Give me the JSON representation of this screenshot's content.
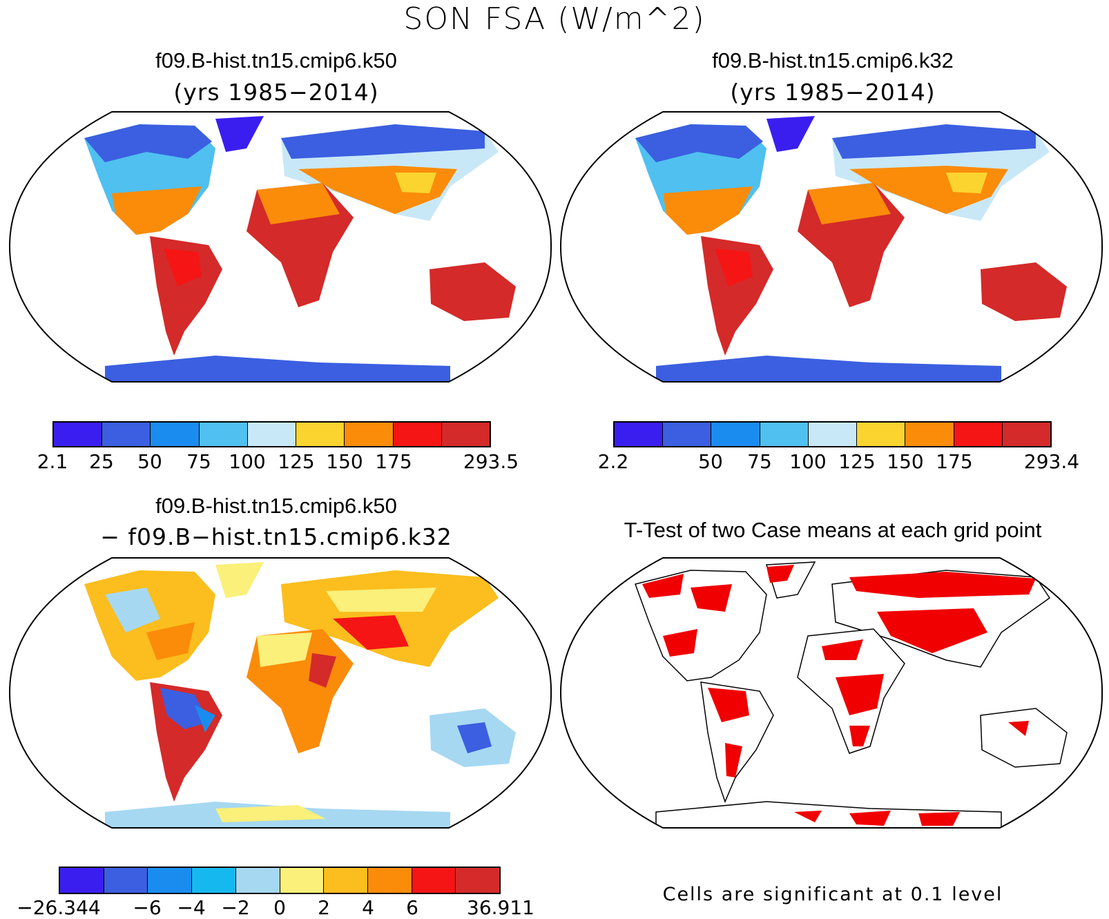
{
  "figure": {
    "title": "SON FSA (W/m^2)"
  },
  "panels": {
    "top_left": {
      "title": "f09.B-hist.tn15.cmip6.k50",
      "subtitle": "(yrs 1985−2014)",
      "colorbar": {
        "colors": [
          "#3a1ef0",
          "#3b5fe0",
          "#1a8cf0",
          "#4fc0f0",
          "#c8e8f8",
          "#fbd430",
          "#fa8c0a",
          "#f51515",
          "#d42a2a"
        ],
        "labels": [
          "2.1",
          "25",
          "50",
          "75",
          "100",
          "125",
          "150",
          "175",
          "293.5"
        ]
      }
    },
    "top_right": {
      "title": "f09.B-hist.tn15.cmip6.k32",
      "subtitle": "(yrs 1985−2014)",
      "colorbar": {
        "colors": [
          "#3a1ef0",
          "#3b5fe0",
          "#1a8cf0",
          "#4fc0f0",
          "#c8e8f8",
          "#fbd430",
          "#fa8c0a",
          "#f51515",
          "#d42a2a"
        ],
        "labels": [
          "2.2",
          "50",
          "75",
          "100",
          "125",
          "150",
          "175",
          "293.4"
        ]
      }
    },
    "bottom_left": {
      "title": "f09.B-hist.tn15.cmip6.k50",
      "subtitle": "− f09.B−hist.tn15.cmip6.k32",
      "colorbar": {
        "colors": [
          "#3a1ef0",
          "#3b5fe0",
          "#1a8cf0",
          "#16b8f0",
          "#a6d8f2",
          "#faf07a",
          "#fbbe1e",
          "#fa8c0a",
          "#f51515",
          "#d42a2a"
        ],
        "labels": [
          "−26.344",
          "−6",
          "−4",
          "−2",
          "0",
          "2",
          "4",
          "6",
          "36.911"
        ]
      }
    },
    "bottom_right": {
      "title": "T-Test of two Case means at each grid point",
      "note": "Cells are significant at 0.1 level",
      "significant_color": "#f00000"
    }
  }
}
